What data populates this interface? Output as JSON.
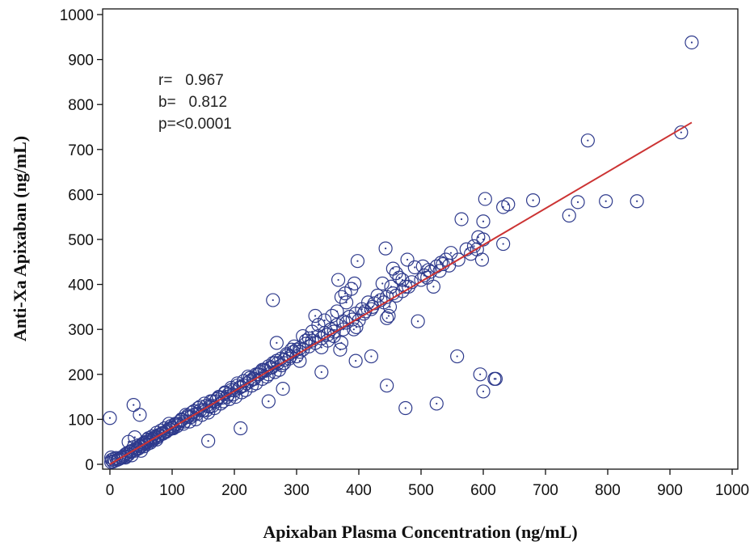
{
  "chart_data": {
    "type": "scatter",
    "title": "",
    "xlabel": "Apixaban Plasma Concentration (ng/mL)",
    "ylabel": "Anti-Xa Apixaban (ng/mL)",
    "xlim": [
      0,
      1000
    ],
    "ylim": [
      0,
      1000
    ],
    "x_ticks": [
      0,
      100,
      200,
      300,
      400,
      500,
      600,
      700,
      800,
      900,
      1000
    ],
    "y_ticks": [
      0,
      100,
      200,
      300,
      400,
      500,
      600,
      700,
      800,
      900,
      1000
    ],
    "grid": false,
    "legend": "none",
    "marker": "open circle with center dot",
    "colors": {
      "points": "#2e3a8c",
      "line": "#cc3333",
      "axes": "#111111"
    },
    "stats": {
      "r": "r=   0.967",
      "b": "b=   0.812",
      "p": "p=<0.0001"
    },
    "regression_line": {
      "x": [
        0,
        935
      ],
      "y": [
        0,
        760
      ]
    },
    "points": {
      "x": [
        935,
        918,
        768,
        847,
        797,
        752,
        738,
        680,
        640,
        632,
        632,
        603,
        600,
        592,
        585,
        573,
        565,
        598,
        600,
        548,
        540,
        532,
        525,
        520,
        512,
        503,
        495,
        490,
        478,
        470,
        465,
        460,
        455,
        450,
        448,
        443,
        438,
        430,
        422,
        415,
        408,
        400,
        396,
        392,
        388,
        380,
        375,
        372,
        370,
        365,
        360,
        355,
        350,
        345,
        340,
        335,
        330,
        325,
        320,
        315,
        310,
        305,
        300,
        296,
        292,
        288,
        284,
        280,
        276,
        272,
        268,
        265,
        262,
        258,
        255,
        252,
        248,
        245,
        242,
        238,
        235,
        232,
        228,
        225,
        222,
        218,
        215,
        212,
        208,
        205,
        202,
        198,
        195,
        192,
        188,
        185,
        182,
        178,
        175,
        172,
        168,
        165,
        162,
        158,
        155,
        152,
        148,
        145,
        142,
        138,
        135,
        132,
        128,
        125,
        122,
        118,
        115,
        112,
        108,
        105,
        102,
        98,
        95,
        92,
        88,
        85,
        82,
        78,
        75,
        72,
        68,
        65,
        62,
        58,
        55,
        52,
        48,
        45,
        42,
        38,
        35,
        32,
        28,
        25,
        22,
        18,
        15,
        12,
        8,
        5,
        2,
        0,
        3,
        6,
        10,
        14,
        20,
        26,
        30,
        34,
        40,
        46,
        50,
        56,
        60,
        66,
        70,
        76,
        80,
        86,
        90,
        96,
        100,
        110,
        120,
        130,
        140,
        150,
        160,
        170,
        180,
        190,
        200,
        210,
        220,
        230,
        240,
        250,
        260,
        270,
        280,
        290,
        310,
        320,
        330,
        340,
        350,
        360,
        380,
        390,
        410,
        420,
        440,
        460,
        470,
        480,
        500,
        510,
        530,
        545,
        560,
        580,
        590,
        40,
        55,
        30,
        45,
        60,
        35,
        50,
        25,
        65,
        70,
        80,
        90,
        100,
        60,
        75,
        85,
        95,
        105,
        115,
        125,
        135,
        145,
        155,
        165,
        175,
        185,
        195,
        205,
        215,
        225,
        235,
        245,
        255,
        265,
        275,
        285,
        295,
        305,
        315,
        325,
        335,
        345,
        355,
        365,
        375,
        385,
        395,
        405,
        425,
        435,
        445,
        455,
        475,
        485,
        505,
        515,
        535,
        600,
        398,
        262,
        452,
        367,
        393,
        372,
        378,
        357,
        420,
        445,
        268,
        255,
        210,
        158,
        38,
        2,
        48,
        475,
        525,
        445,
        618,
        620,
        595,
        558,
        395,
        300,
        278,
        340,
        305
      ],
      "y": [
        938,
        738,
        720,
        585,
        585,
        583,
        553,
        587,
        578,
        572,
        490,
        590,
        540,
        505,
        485,
        478,
        545,
        455,
        500,
        470,
        455,
        448,
        440,
        395,
        432,
        440,
        318,
        438,
        455,
        410,
        415,
        425,
        435,
        350,
        330,
        480,
        402,
        375,
        350,
        360,
        335,
        320,
        305,
        300,
        390,
        360,
        300,
        270,
        255,
        340,
        285,
        300,
        275,
        320,
        260,
        310,
        330,
        295,
        280,
        275,
        285,
        250,
        240,
        262,
        255,
        235,
        245,
        225,
        220,
        210,
        230,
        205,
        225,
        215,
        200,
        195,
        210,
        190,
        205,
        200,
        180,
        190,
        175,
        185,
        195,
        165,
        175,
        160,
        170,
        180,
        150,
        155,
        170,
        145,
        150,
        160,
        140,
        135,
        150,
        145,
        125,
        130,
        140,
        115,
        120,
        135,
        110,
        120,
        125,
        100,
        110,
        115,
        95,
        105,
        110,
        90,
        100,
        95,
        85,
        90,
        80,
        85,
        90,
        75,
        80,
        70,
        75,
        65,
        70,
        60,
        62,
        55,
        58,
        50,
        48,
        45,
        40,
        42,
        35,
        38,
        30,
        28,
        25,
        22,
        18,
        15,
        12,
        10,
        8,
        6,
        5,
        103,
        10,
        12,
        14,
        12,
        15,
        18,
        22,
        28,
        30,
        35,
        40,
        45,
        50,
        52,
        55,
        60,
        65,
        70,
        72,
        78,
        82,
        90,
        95,
        105,
        112,
        120,
        128,
        140,
        148,
        155,
        165,
        172,
        180,
        190,
        200,
        208,
        215,
        225,
        232,
        240,
        255,
        262,
        270,
        280,
        288,
        295,
        315,
        322,
        340,
        345,
        360,
        375,
        385,
        395,
        410,
        415,
        430,
        442,
        455,
        468,
        478,
        60,
        40,
        50,
        35,
        55,
        20,
        30,
        15,
        48,
        58,
        65,
        72,
        80,
        45,
        55,
        68,
        78,
        88,
        98,
        108,
        118,
        128,
        130,
        140,
        148,
        158,
        165,
        175,
        185,
        192,
        200,
        210,
        218,
        225,
        235,
        242,
        250,
        258,
        268,
        275,
        285,
        292,
        300,
        310,
        318,
        328,
        335,
        345,
        358,
        365,
        372,
        380,
        395,
        405,
        420,
        428,
        445,
        162,
        452,
        365,
        395,
        410,
        402,
        372,
        380,
        330,
        240,
        325,
        270,
        140,
        80,
        52,
        132,
        15,
        110,
        125,
        135,
        175,
        190,
        190,
        200,
        240,
        230,
        255,
        168,
        205,
        230
      ]
    }
  }
}
